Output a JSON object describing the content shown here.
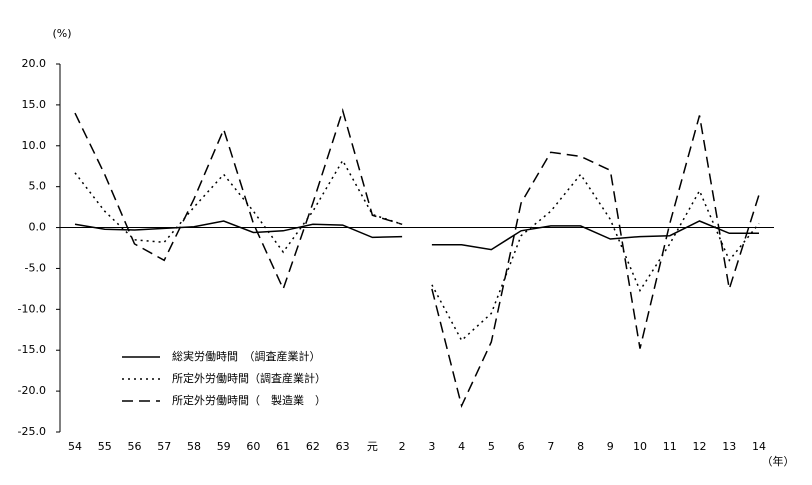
{
  "chart_data": {
    "type": "line",
    "y_unit": "(%)",
    "x_unit": "（年）",
    "categories": [
      "54",
      "55",
      "56",
      "57",
      "58",
      "59",
      "60",
      "61",
      "62",
      "63",
      "元",
      "2",
      "3",
      "4",
      "5",
      "6",
      "7",
      "8",
      "9",
      "10",
      "11",
      "12",
      "13",
      "14"
    ],
    "line_gap_after": 11,
    "series": [
      {
        "name": "総実労働時間　（調査産業計）",
        "color": "#000000",
        "style": "solid",
        "values": [
          0.4,
          -0.2,
          -0.3,
          -0.1,
          0.1,
          0.8,
          -0.6,
          -0.4,
          0.4,
          0.3,
          -1.2,
          -1.1,
          -2.1,
          -2.1,
          -2.7,
          -0.4,
          0.2,
          0.2,
          -1.4,
          -1.1,
          -1.0,
          0.8,
          -0.7,
          -0.7
        ]
      },
      {
        "name": "所定外労働時間（調査産業計）",
        "color": "#000000",
        "style": "dotted",
        "values": [
          6.7,
          2.0,
          -1.5,
          -1.8,
          2.5,
          6.5,
          2.0,
          -3.0,
          2.0,
          8.2,
          1.6,
          0.4,
          -7.0,
          -13.8,
          -10.5,
          -1.0,
          2.0,
          6.5,
          1.0,
          -7.7,
          -2.0,
          4.5,
          -4.0,
          0.5
        ]
      },
      {
        "name": "所定外労働時間（　製造業　）",
        "color": "#000000",
        "style": "dashed",
        "values": [
          14.0,
          6.5,
          -2.0,
          -4.0,
          3.5,
          12.0,
          0.5,
          -7.5,
          3.0,
          14.3,
          1.5,
          0.4,
          -7.5,
          -21.8,
          -14.0,
          3.0,
          9.2,
          8.7,
          7.0,
          -14.8,
          0.5,
          13.7,
          -7.5,
          4.0
        ]
      }
    ],
    "ylim": [
      -25,
      20
    ],
    "yticks": [
      {
        "value": -25,
        "label": "-25.0"
      },
      {
        "value": -20,
        "label": "-20.0"
      },
      {
        "value": -15,
        "label": "-15.0"
      },
      {
        "value": -10,
        "label": "-10.0"
      },
      {
        "value": -5,
        "label": "-5.0"
      },
      {
        "value": 0,
        "label": "0.0"
      },
      {
        "value": 5,
        "label": "5.0"
      },
      {
        "value": 10,
        "label": "10.0"
      },
      {
        "value": 15,
        "label": "15.0"
      },
      {
        "value": 20,
        "label": "20.0"
      }
    ],
    "grid": false
  }
}
